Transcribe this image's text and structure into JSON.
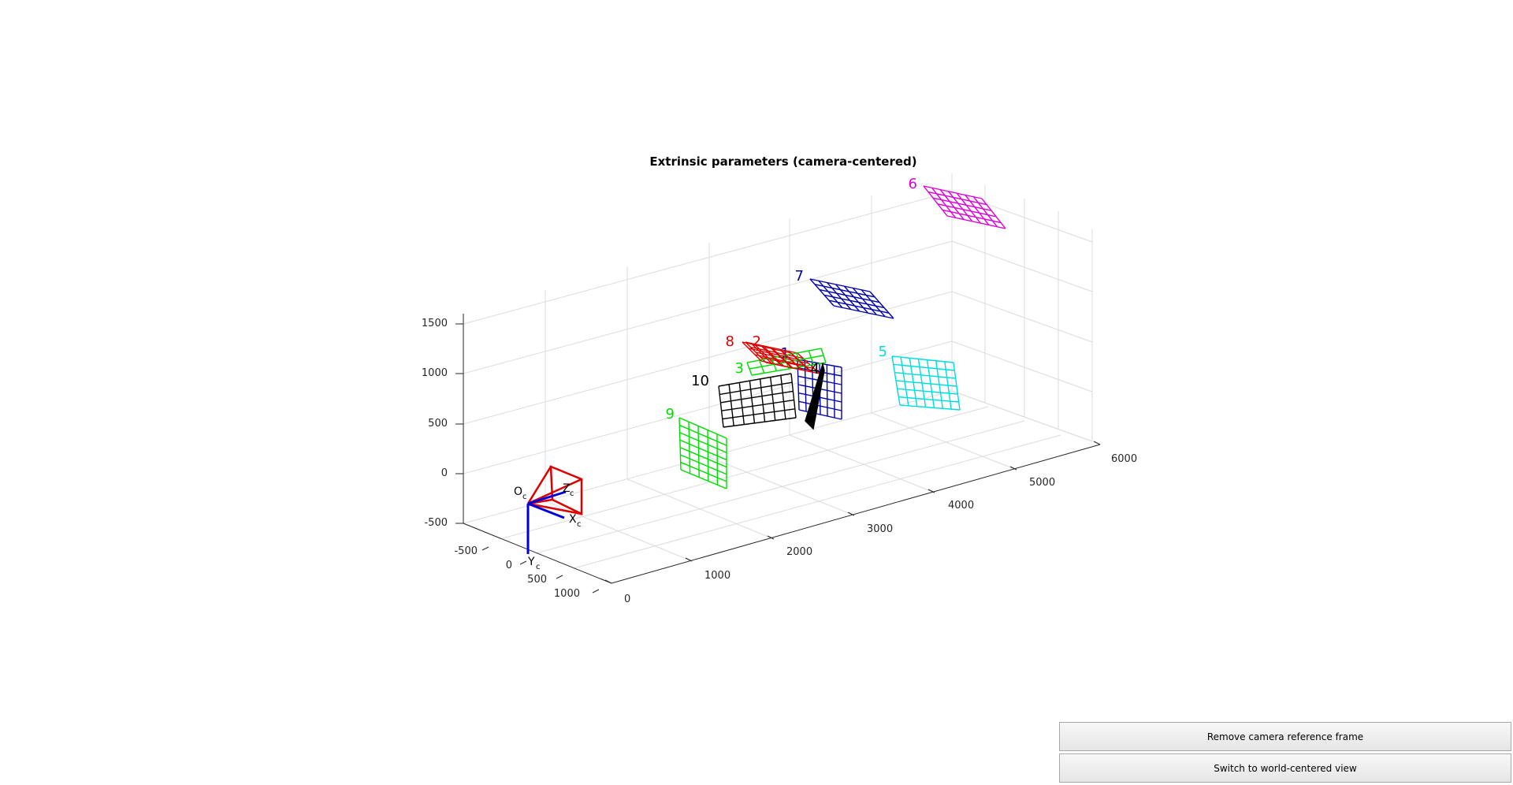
{
  "chart_data": {
    "type": "3d-extrinsics",
    "title": "Extrinsic parameters (camera-centered)",
    "axes": {
      "x_ticks": [
        "-500",
        "0",
        "500",
        "1000"
      ],
      "y_ticks": [
        "0",
        "1000",
        "2000",
        "3000",
        "4000",
        "5000",
        "6000"
      ],
      "z_ticks": [
        "-500",
        "0",
        "500",
        "1000",
        "1500"
      ]
    },
    "camera": {
      "origin_label": "O",
      "origin_sub": "c",
      "x_label": "X",
      "x_sub": "c",
      "y_label": "Y",
      "y_sub": "c",
      "z_label": "Z",
      "z_sub": "c",
      "color": "#dd0000",
      "axis_color": "#0000dd"
    },
    "planes": [
      {
        "label": "1",
        "color": "#0000aa"
      },
      {
        "label": "2",
        "color": "#dd0000"
      },
      {
        "label": "3",
        "color": "#00dd00"
      },
      {
        "label": "4",
        "color": "#000000"
      },
      {
        "label": "5",
        "color": "#00dddd"
      },
      {
        "label": "6",
        "color": "#dd00dd"
      },
      {
        "label": "7",
        "color": "#0000aa"
      },
      {
        "label": "8",
        "color": "#dd0000"
      },
      {
        "label": "9",
        "color": "#00dd00"
      },
      {
        "label": "10",
        "color": "#000000"
      }
    ]
  },
  "buttons": {
    "remove_camera_label": "Remove camera reference frame",
    "switch_view_label": "Switch to world-centered view"
  }
}
